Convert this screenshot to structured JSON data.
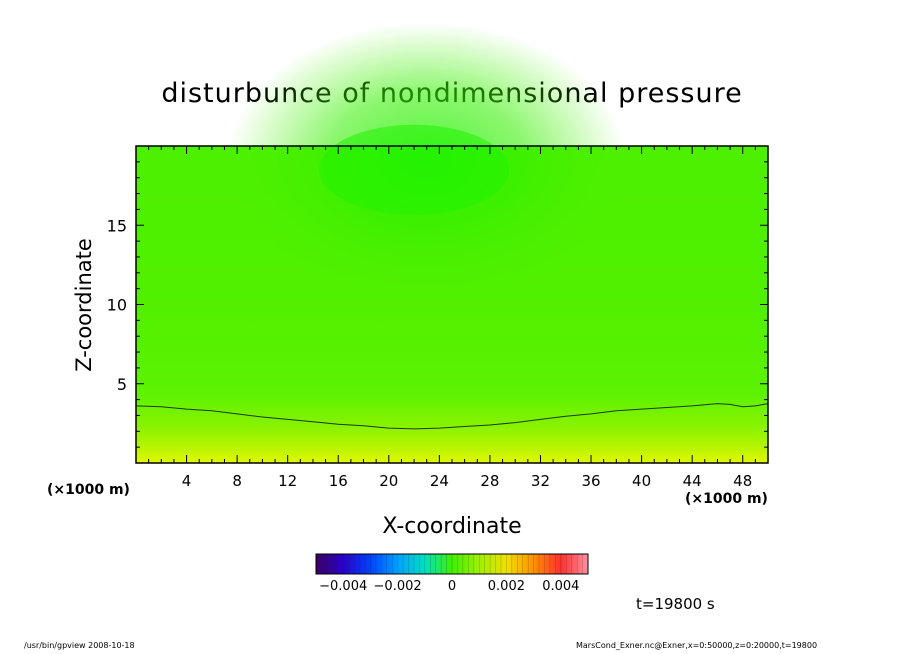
{
  "title": "disturbunce of nondimensional pressure",
  "xlabel": "X-coordinate",
  "ylabel": "Z-coordinate",
  "x_unit_left": "(×1000 m)",
  "x_unit_right": "(×1000 m)",
  "time_label": "t=19800 s",
  "footer_left": "/usr/bin/gpview   2008-10-18",
  "footer_right": "MarsCond_Exner.nc@Exner,x=0:50000,z=0:20000,t=19800",
  "chart_data": {
    "type": "heatmap",
    "title": "disturbunce of nondimensional pressure",
    "xlabel": "X-coordinate",
    "ylabel": "Z-coordinate",
    "xlim": [
      0,
      50
    ],
    "ylim": [
      0,
      20
    ],
    "x_ticks": [
      4,
      8,
      12,
      16,
      20,
      24,
      28,
      32,
      36,
      40,
      44,
      48
    ],
    "y_ticks": [
      5,
      10,
      15
    ],
    "colorbar": {
      "range": [
        -0.005,
        0.005
      ],
      "ticks": [
        -0.004,
        -0.002,
        0,
        0.002,
        0.004
      ],
      "tick_labels": [
        "−0.004",
        "−0.002",
        "0",
        "0.002",
        "0.004"
      ]
    },
    "field_description_values": {
      "surface_value": 0.0007,
      "top_value": -0.0003,
      "center_top_min": -0.0005
    },
    "contour_line": {
      "x": [
        0,
        2,
        4,
        6,
        8,
        10,
        12,
        14,
        16,
        18,
        20,
        22,
        24,
        26,
        28,
        30,
        32,
        34,
        36,
        38,
        40,
        42,
        44,
        46,
        47,
        48,
        49,
        50
      ],
      "z": [
        3.6,
        3.55,
        3.4,
        3.3,
        3.1,
        2.9,
        2.75,
        2.6,
        2.45,
        2.35,
        2.2,
        2.15,
        2.2,
        2.3,
        2.4,
        2.55,
        2.75,
        2.95,
        3.1,
        3.3,
        3.4,
        3.5,
        3.6,
        3.75,
        3.7,
        3.55,
        3.6,
        3.75
      ]
    }
  }
}
